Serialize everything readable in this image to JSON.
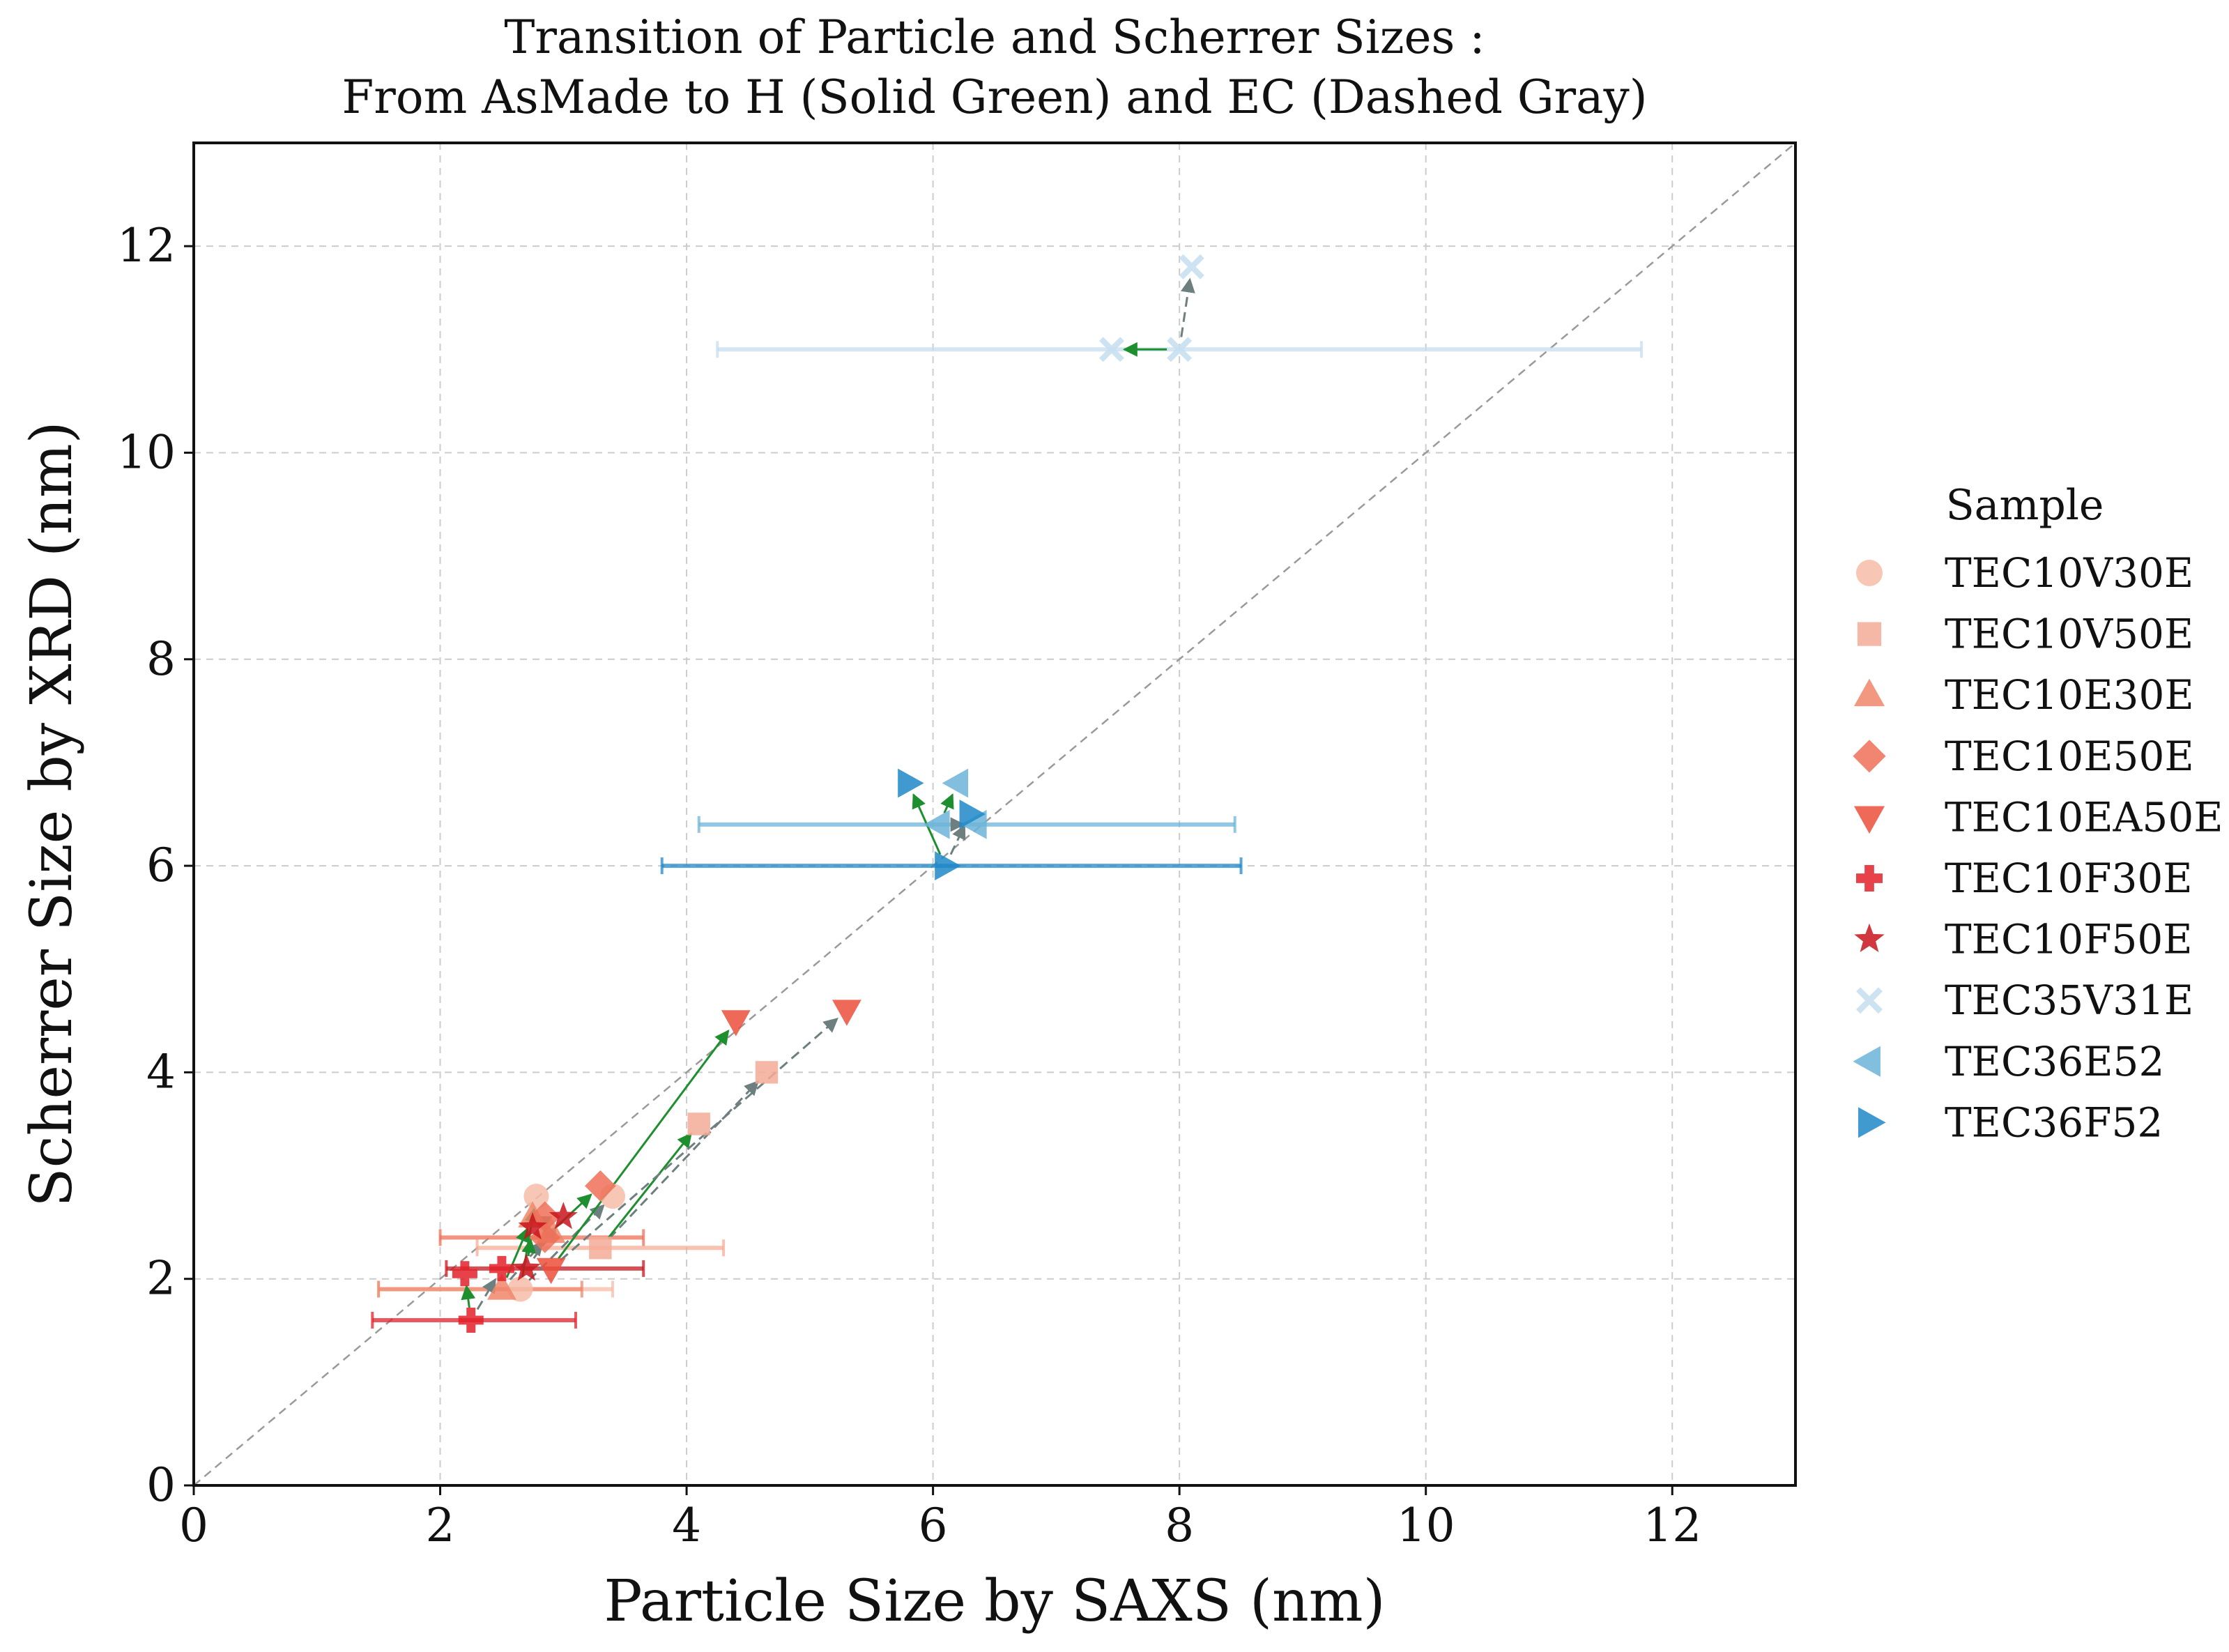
{
  "chart_data": {
    "type": "scatter",
    "title_line1": "Transition of Particle and Scherrer Sizes :",
    "title_line2": "From AsMade to H (Solid Green) and EC (Dashed Gray)",
    "xlabel": "Particle Size by SAXS (nm)",
    "ylabel": "Scherrer Size by XRD (nm)",
    "xlim": [
      0,
      13
    ],
    "ylim": [
      0,
      13
    ],
    "xticks": [
      "0",
      "2",
      "4",
      "6",
      "8",
      "10",
      "12"
    ],
    "yticks": [
      "0",
      "2",
      "4",
      "6",
      "8",
      "10",
      "12"
    ],
    "grid": true,
    "diagonal": true,
    "legend_title": "Sample",
    "legend_position": "right",
    "colors": {
      "h_arrow": "#1e8f2e",
      "ec_arrow": "#6e7f80",
      "diagonal": "#9a9a9a",
      "grid": "#cccccc"
    },
    "series": [
      {
        "name": "TEC10V30E",
        "color": "#f6bca8",
        "marker": "circle",
        "points": [
          {
            "stage": "AsMade",
            "x": 2.65,
            "y": 1.9,
            "xerr": [
              1.5,
              3.4
            ]
          },
          {
            "stage": "H",
            "x": 2.78,
            "y": 2.8
          },
          {
            "stage": "EC",
            "x": 3.4,
            "y": 2.8
          }
        ]
      },
      {
        "name": "TEC10V50E",
        "color": "#f5ac96",
        "marker": "square",
        "points": [
          {
            "stage": "AsMade",
            "x": 3.3,
            "y": 2.3,
            "xerr": [
              2.3,
              4.3
            ]
          },
          {
            "stage": "H",
            "x": 4.1,
            "y": 3.5
          },
          {
            "stage": "EC",
            "x": 4.65,
            "y": 4.0
          }
        ]
      },
      {
        "name": "TEC10E30E",
        "color": "#f0866a",
        "marker": "triangle-up",
        "points": [
          {
            "stage": "AsMade",
            "x": 2.5,
            "y": 1.9,
            "xerr": [
              1.5,
              3.15
            ]
          },
          {
            "stage": "H",
            "x": 2.75,
            "y": 2.6
          },
          {
            "stage": "EC",
            "x": 2.9,
            "y": 2.45
          }
        ]
      },
      {
        "name": "TEC10E50E",
        "color": "#ef7058",
        "marker": "diamond",
        "points": [
          {
            "stage": "AsMade",
            "x": 2.85,
            "y": 2.4,
            "xerr": [
              2.0,
              3.65
            ]
          },
          {
            "stage": "H",
            "x": 3.3,
            "y": 2.9
          },
          {
            "stage": "EC",
            "x": 2.85,
            "y": 2.6
          }
        ]
      },
      {
        "name": "TEC10EA50E",
        "color": "#ec4f3c",
        "marker": "triangle-down",
        "points": [
          {
            "stage": "AsMade",
            "x": 2.9,
            "y": 2.1
          },
          {
            "stage": "H",
            "x": 4.4,
            "y": 4.5
          },
          {
            "stage": "EC",
            "x": 5.3,
            "y": 4.6
          }
        ]
      },
      {
        "name": "TEC10F30E",
        "color": "#e3202a",
        "marker": "plus",
        "points": [
          {
            "stage": "AsMade",
            "x": 2.25,
            "y": 1.6,
            "xerr": [
              1.45,
              3.1
            ]
          },
          {
            "stage": "H",
            "x": 2.2,
            "y": 2.05
          },
          {
            "stage": "EC",
            "x": 2.5,
            "y": 2.1
          }
        ]
      },
      {
        "name": "TEC10F50E",
        "color": "#c8141c",
        "marker": "star",
        "points": [
          {
            "stage": "AsMade",
            "x": 2.7,
            "y": 2.1,
            "xerr": [
              2.05,
              3.65
            ]
          },
          {
            "stage": "H",
            "x": 2.75,
            "y": 2.5
          },
          {
            "stage": "EC",
            "x": 3.0,
            "y": 2.6
          }
        ]
      },
      {
        "name": "TEC35V31E",
        "color": "#c6deef",
        "marker": "x",
        "points": [
          {
            "stage": "AsMade",
            "x": 8.0,
            "y": 11.0,
            "xerr": [
              4.25,
              11.75
            ]
          },
          {
            "stage": "H",
            "x": 7.45,
            "y": 11.0
          },
          {
            "stage": "EC",
            "x": 8.1,
            "y": 11.8
          }
        ]
      },
      {
        "name": "TEC36E52",
        "color": "#6cb4d8",
        "marker": "triangle-left",
        "points": [
          {
            "stage": "AsMade",
            "x": 6.05,
            "y": 6.4,
            "xerr": [
              4.1,
              8.45
            ]
          },
          {
            "stage": "H",
            "x": 6.2,
            "y": 6.8
          },
          {
            "stage": "EC",
            "x": 6.35,
            "y": 6.4
          }
        ]
      },
      {
        "name": "TEC36F52",
        "color": "#1f88c8",
        "marker": "triangle-right",
        "points": [
          {
            "stage": "AsMade",
            "x": 6.1,
            "y": 6.0,
            "xerr": [
              3.8,
              8.5
            ]
          },
          {
            "stage": "H",
            "x": 5.8,
            "y": 6.8
          },
          {
            "stage": "EC",
            "x": 6.3,
            "y": 6.5
          }
        ]
      }
    ]
  }
}
